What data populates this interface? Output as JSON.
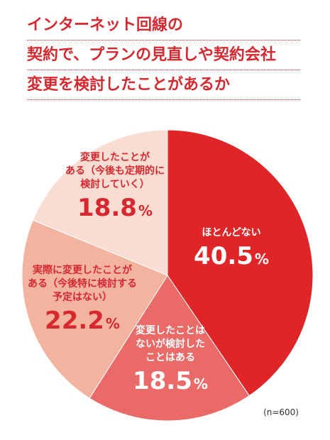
{
  "title": {
    "lines": [
      "インターネット回線の",
      "契約で、プランの見直しや契約会社",
      "変更を検討したことがあるか"
    ]
  },
  "note": "(n=600)",
  "chart_data": {
    "type": "pie",
    "start_angle_deg": 0,
    "direction": "clockwise",
    "slices": [
      {
        "label_lines": [
          "ほとんどない"
        ],
        "value": 40.5,
        "value_text": "40.5",
        "unit": "%",
        "color": "#e02528",
        "text_color": "#ffffff"
      },
      {
        "label_lines": [
          "変更したことは",
          "ないが検討した",
          "ことはある"
        ],
        "value": 18.5,
        "value_text": "18.5",
        "unit": "%",
        "color": "#ea6a67",
        "text_color": "#ffffff"
      },
      {
        "label_lines": [
          "実際に変更したことが",
          "ある（今後特に検討する",
          "予定はない）"
        ],
        "value": 22.2,
        "value_text": "22.2",
        "unit": "%",
        "color": "#f2b49f",
        "text_color": "#d7282f"
      },
      {
        "label_lines": [
          "変更したことが",
          "ある（今後も定期的に",
          "検討していく）"
        ],
        "value": 18.8,
        "value_text": "18.8",
        "unit": "%",
        "color": "#f9ddd3",
        "text_color": "#d7282f"
      }
    ]
  }
}
